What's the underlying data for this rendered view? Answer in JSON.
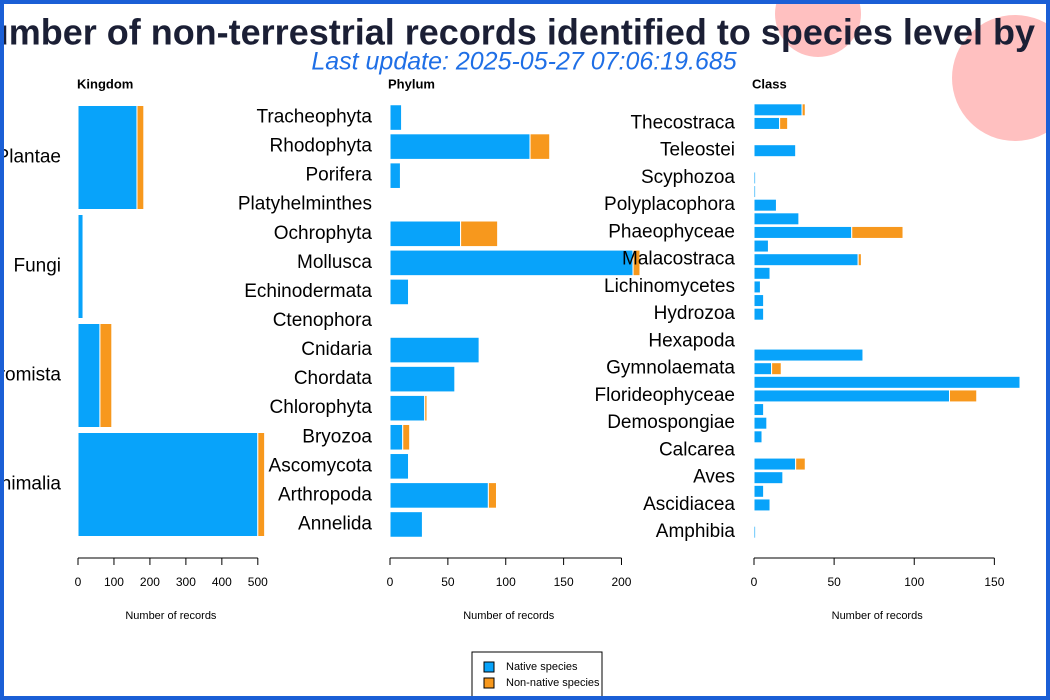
{
  "title": "Number of non-terrestrial records identified to species level by",
  "subtitle": "Last update: 2025-05-27 07:06:19.685",
  "chart_data": [
    {
      "type": "bar",
      "orientation": "horizontal",
      "title": "Kingdom",
      "xlabel": "Number of records",
      "categories": [
        "Plantae",
        "Fungi",
        "Chromista",
        "Animalia"
      ],
      "series": [
        {
          "name": "Native species",
          "color": "#08a3fa",
          "values": [
            164,
            14,
            61,
            500
          ]
        },
        {
          "name": "Non-native species",
          "color": "#f7981d",
          "values": [
            19,
            0,
            33,
            19
          ]
        }
      ],
      "xlim": [
        0,
        520
      ],
      "xticks": [
        0,
        100,
        200,
        300,
        400,
        500
      ]
    },
    {
      "type": "bar",
      "orientation": "horizontal",
      "title": "Phylum",
      "xlabel": "Number of records",
      "categories": [
        "Tracheophyta",
        "Rhodophyta",
        "Porifera",
        "Platyhelminthes",
        "Ochrophyta",
        "Mollusca",
        "Echinodermata",
        "Ctenophora",
        "Cnidaria",
        "Chordata",
        "Chlorophyta",
        "Bryozoa",
        "Ascomycota",
        "Arthropoda",
        "Annelida"
      ],
      "series": [
        {
          "color": "#08a3fa",
          "values": [
            10,
            121,
            9,
            0,
            61,
            210,
            16,
            0,
            77,
            56,
            30,
            11,
            16,
            85,
            28
          ]
        },
        {
          "color": "#f7981d",
          "values": [
            0,
            17,
            0,
            0,
            32,
            6,
            0,
            0,
            0,
            0,
            2,
            6,
            0,
            7,
            0
          ]
        }
      ],
      "xlim": [
        0,
        216
      ],
      "xticks": [
        0,
        50,
        100,
        150,
        200
      ]
    },
    {
      "type": "bar",
      "orientation": "horizontal",
      "title": "Class",
      "xlabel": "Number of records",
      "categories": [
        null,
        "Thecostraca",
        null,
        "Teleostei",
        null,
        "Scyphozoa",
        null,
        "Polyplacophora",
        null,
        "Phaeophyceae",
        null,
        "Malacostraca",
        null,
        "Lichinomycetes",
        null,
        "Hydrozoa",
        null,
        "Hexapoda",
        null,
        "Gymnolaemata",
        null,
        "Florideophyceae",
        null,
        "Demospongiae",
        null,
        "Calcarea",
        null,
        "Aves",
        null,
        "Ascidiacea",
        null,
        "Amphibia"
      ],
      "series": [
        {
          "color": "#08a3fa",
          "values": [
            30,
            16,
            0,
            26,
            0,
            1,
            1,
            14,
            28,
            61,
            9,
            65,
            10,
            4,
            6,
            6,
            0,
            0,
            68,
            11,
            166,
            122,
            6,
            8,
            5,
            0,
            26,
            18,
            6,
            10,
            0,
            1
          ]
        },
        {
          "color": "#f7981d",
          "values": [
            2,
            5,
            0,
            0,
            0,
            0,
            0,
            0,
            0,
            32,
            0,
            2,
            0,
            0,
            0,
            0,
            0,
            0,
            0,
            6,
            0,
            17,
            0,
            0,
            0,
            0,
            6,
            0,
            0,
            0,
            0,
            0
          ]
        }
      ],
      "xlim": [
        0,
        166
      ],
      "xticks": [
        0,
        50,
        100,
        150
      ]
    }
  ]
}
